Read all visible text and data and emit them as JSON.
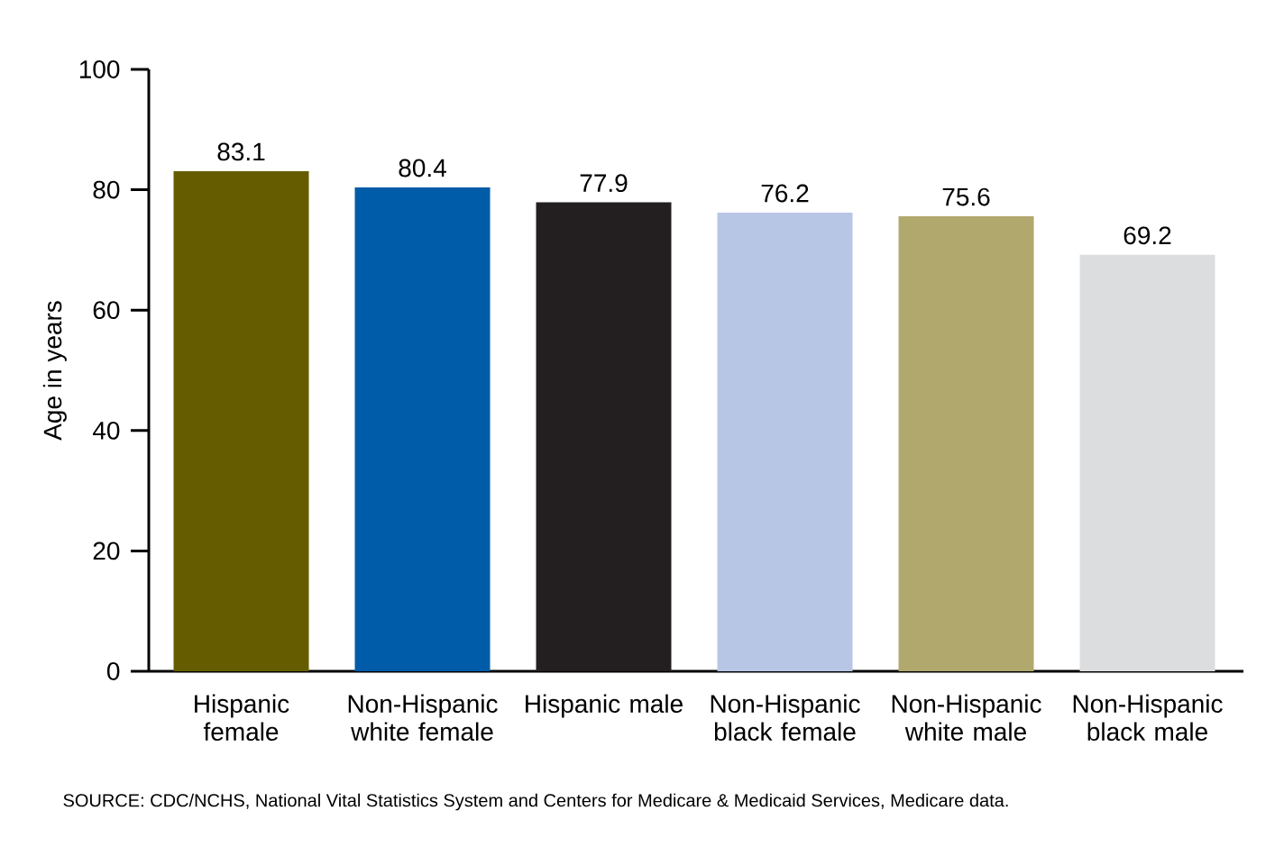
{
  "chart_data": {
    "type": "bar",
    "categories": [
      "Hispanic female",
      "Non-Hispanic white female",
      "Hispanic male",
      "Non-Hispanic black female",
      "Non-Hispanic white male",
      "Non-Hispanic black male"
    ],
    "values": [
      83.1,
      80.4,
      77.9,
      76.2,
      75.6,
      69.2
    ],
    "colors": [
      "#655c00",
      "#005ca8",
      "#231f20",
      "#b8c6e6",
      "#b1a86d",
      "#dcdddf"
    ],
    "ylabel": "Age in years",
    "ylim": [
      0,
      100
    ],
    "yticks": [
      0,
      20,
      40,
      60,
      80,
      100
    ],
    "data_labels": true,
    "grid": false,
    "annotations": [
      "SOURCE: CDC/NCHS, National Vital Statistics System and Centers for Medicare & Medicaid Services, Medicare data."
    ]
  }
}
